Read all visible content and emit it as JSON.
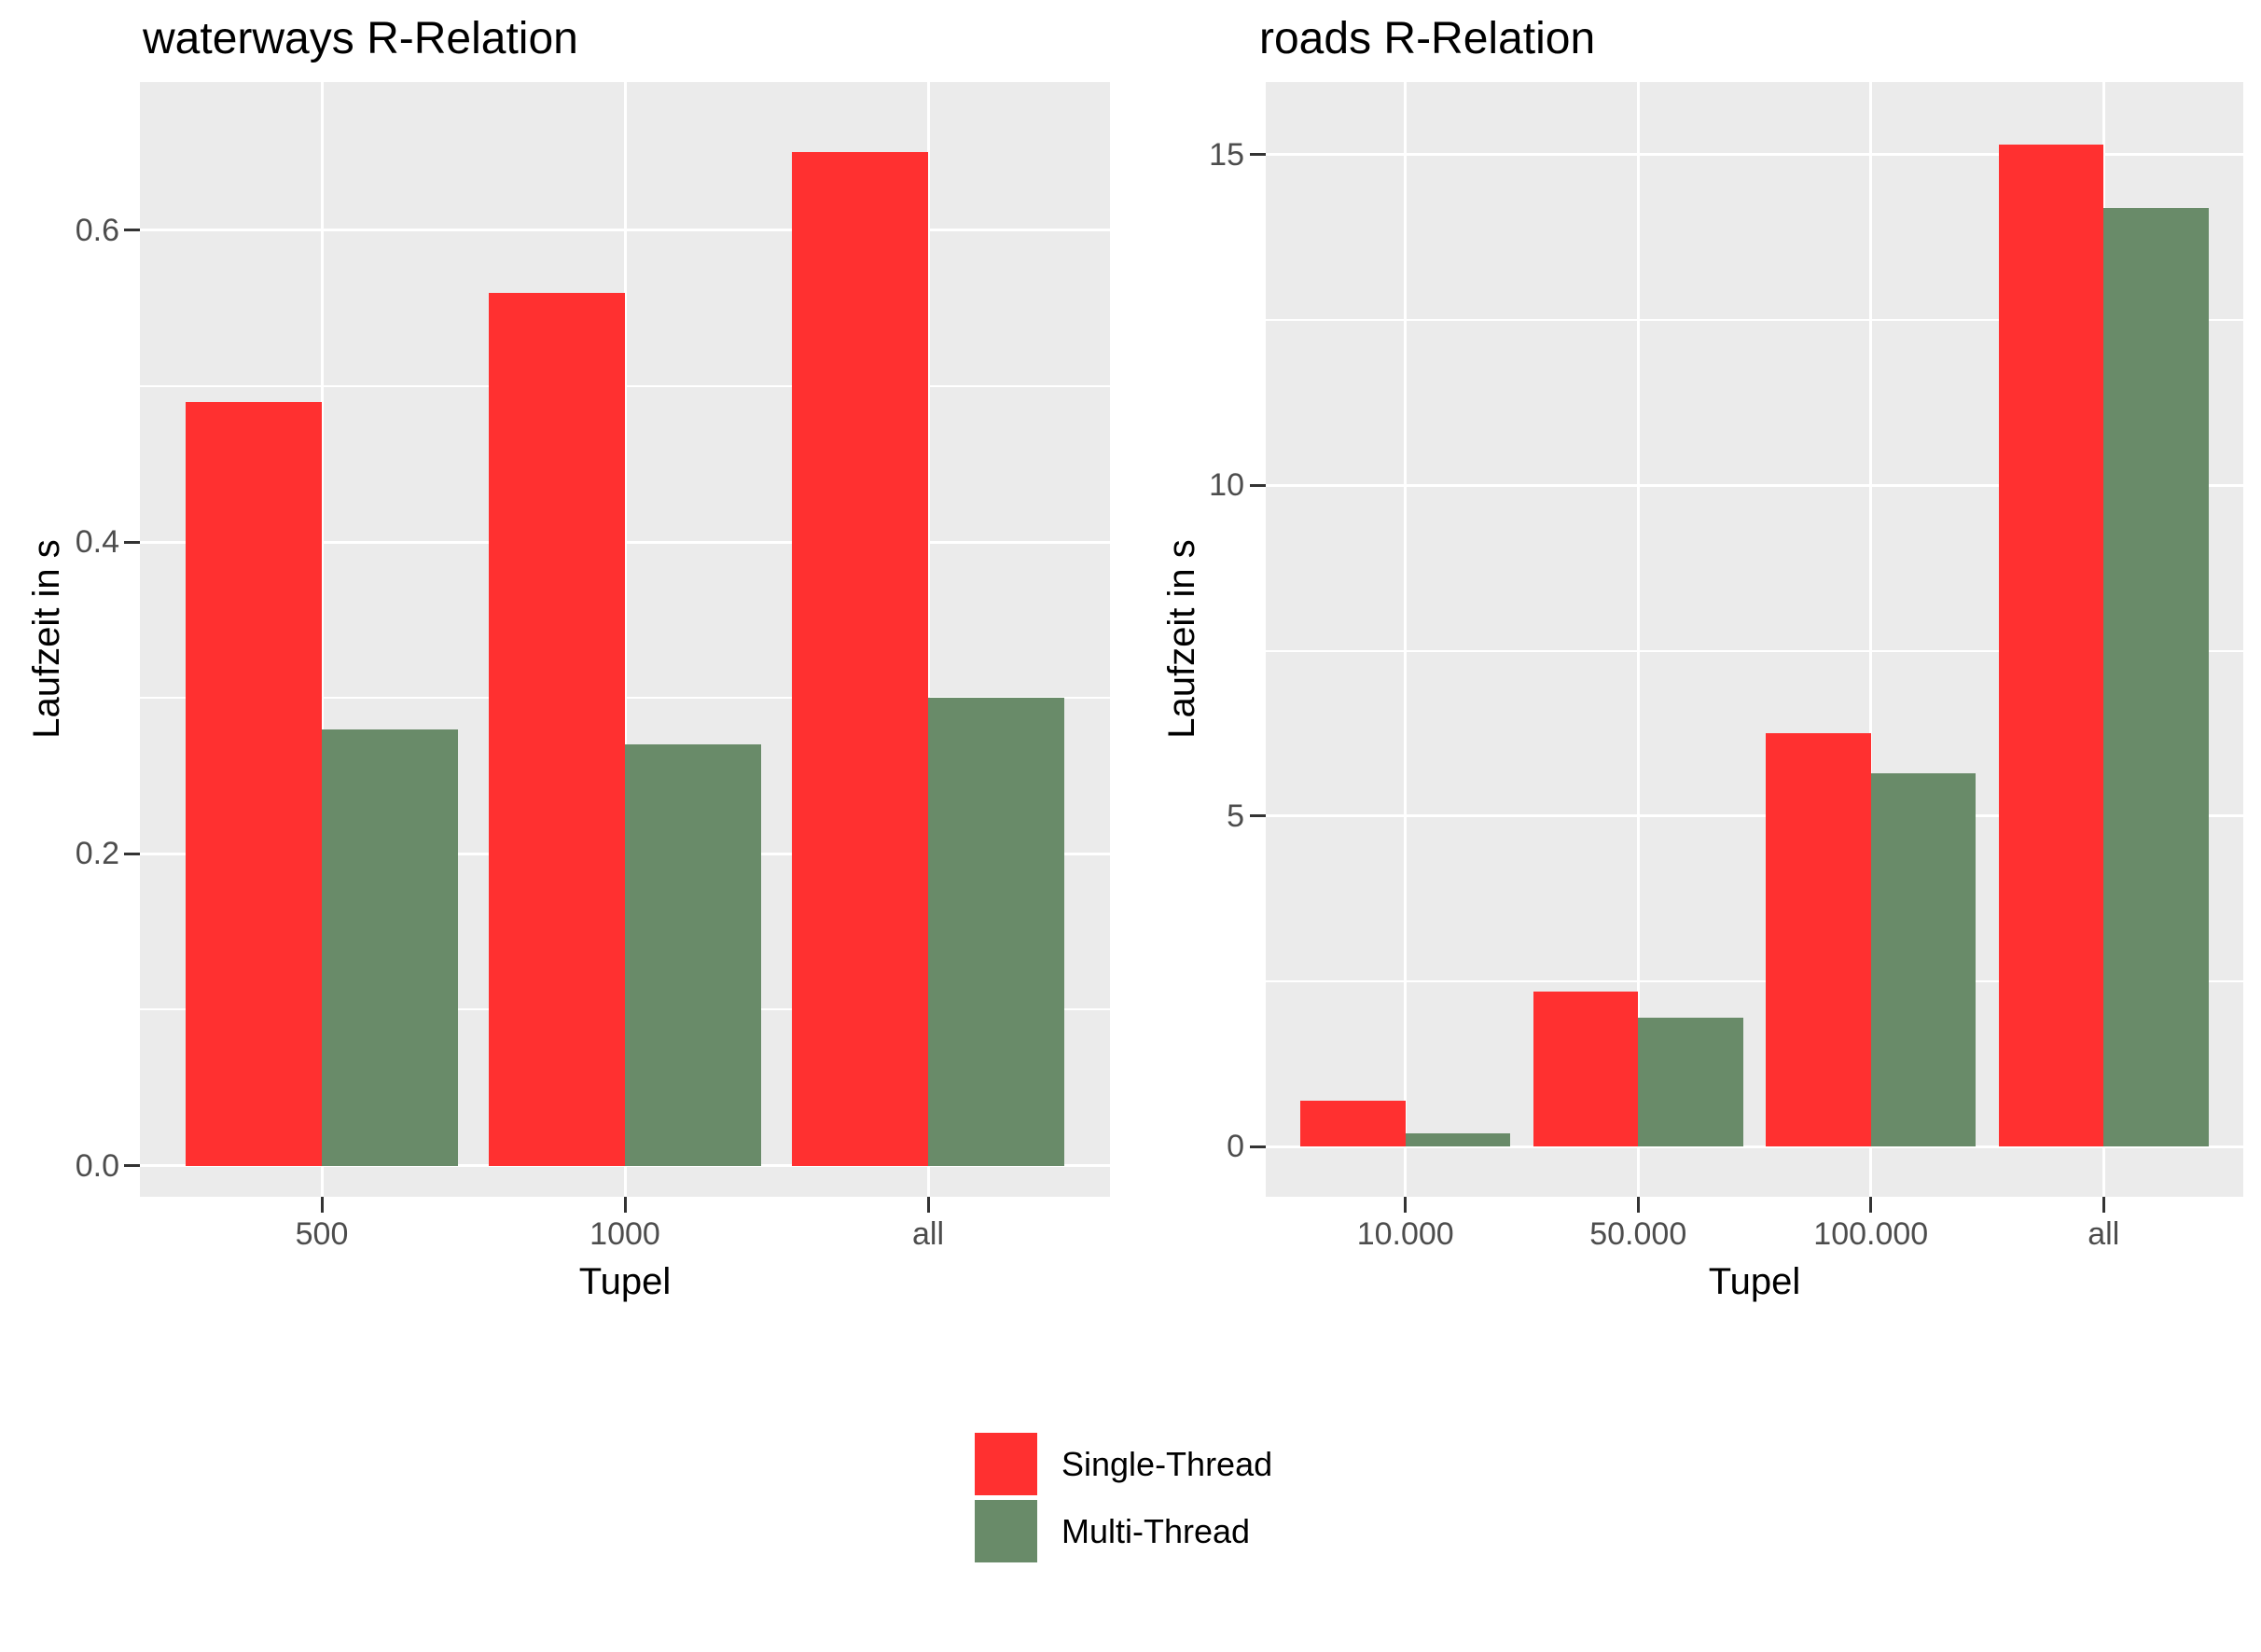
{
  "colors": {
    "panel_background": "#EBEBEB",
    "gridline": "#FFFFFF",
    "tick_text": "#4D4D4D",
    "tick_mark": "#333333",
    "title_text": "#000000",
    "single_thread": "#FF3030",
    "multi_thread": "#698B69"
  },
  "legend": {
    "position": "bottom-center",
    "items": [
      {
        "label": "Single-Thread",
        "color": "#FF3030"
      },
      {
        "label": "Multi-Thread",
        "color": "#698B69"
      }
    ]
  },
  "chart_data": [
    {
      "type": "bar",
      "title": "waterways R-Relation",
      "xlabel": "Tupel",
      "ylabel": "Laufzeit in s",
      "categories": [
        "500",
        "1000",
        "all"
      ],
      "series": [
        {
          "name": "Single-Thread",
          "color": "#FF3030",
          "values": [
            0.49,
            0.56,
            0.65
          ]
        },
        {
          "name": "Multi-Thread",
          "color": "#698B69",
          "values": [
            0.28,
            0.27,
            0.3
          ]
        }
      ],
      "y_ticks": [
        0.0,
        0.2,
        0.4,
        0.6
      ],
      "y_tick_labels": [
        "0.0",
        "0.2",
        "0.4",
        "0.6"
      ],
      "y_minor_ticks": [
        0.1,
        0.3,
        0.5
      ],
      "ylim": [
        -0.02,
        0.695
      ],
      "grid": "on",
      "legend_position": "bottom"
    },
    {
      "type": "bar",
      "title": "roads R-Relation",
      "xlabel": "Tupel",
      "ylabel": "Laufzeit in s",
      "categories": [
        "10.000",
        "50.000",
        "100.000",
        "all"
      ],
      "series": [
        {
          "name": "Single-Thread",
          "color": "#FF3030",
          "values": [
            0.7,
            2.35,
            6.25,
            15.15
          ]
        },
        {
          "name": "Multi-Thread",
          "color": "#698B69",
          "values": [
            0.2,
            1.95,
            5.65,
            14.2
          ]
        }
      ],
      "y_ticks": [
        0,
        5,
        10,
        15
      ],
      "y_tick_labels": [
        "0",
        "5",
        "10",
        "15"
      ],
      "y_minor_ticks": [
        2.5,
        7.5,
        12.5
      ],
      "ylim": [
        -0.76,
        16.1
      ],
      "grid": "on",
      "legend_position": "bottom"
    }
  ]
}
